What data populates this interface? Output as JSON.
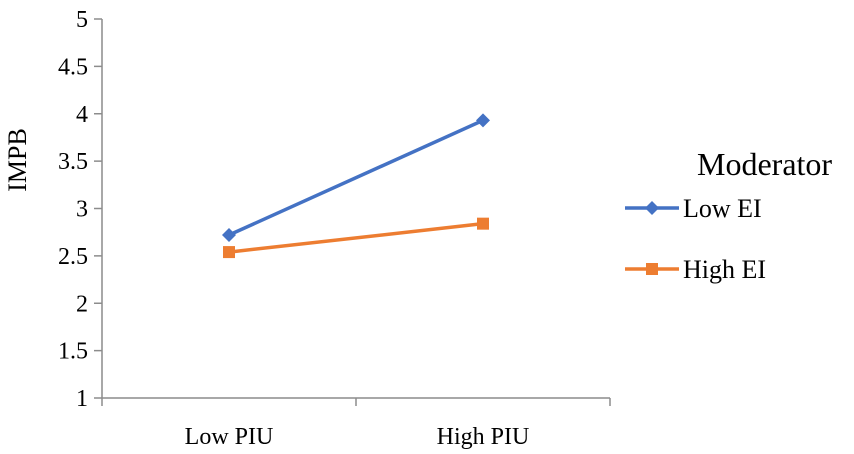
{
  "chart_data": {
    "type": "line",
    "title": "",
    "xlabel": "",
    "ylabel": "IMPB",
    "categories": [
      "Low PIU",
      "High PIU"
    ],
    "series": [
      {
        "name": "Low EI",
        "values": [
          2.72,
          3.93
        ],
        "color": "#4472C4",
        "marker": "diamond"
      },
      {
        "name": "High EI",
        "values": [
          2.54,
          2.84
        ],
        "color": "#ED7D31",
        "marker": "square"
      }
    ],
    "ylim": [
      1,
      5
    ],
    "yticks": [
      "1",
      "1.5",
      "2",
      "2.5",
      "3",
      "3.5",
      "4",
      "4.5",
      "5"
    ],
    "grid": false,
    "legend": {
      "title": "Moderator",
      "position": "right"
    }
  }
}
